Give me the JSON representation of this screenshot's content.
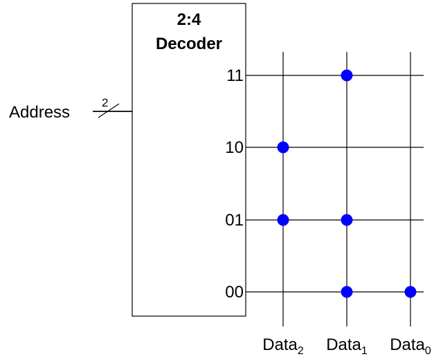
{
  "decoder": {
    "title_line1": "2:4",
    "title_line2": "Decoder"
  },
  "address": {
    "label": "Address",
    "bus_width": "2"
  },
  "wordlines": [
    "11",
    "10",
    "01",
    "00"
  ],
  "bitlines": [
    {
      "base": "Data",
      "sub": "2"
    },
    {
      "base": "Data",
      "sub": "1"
    },
    {
      "base": "Data",
      "sub": "0"
    }
  ],
  "stored_bits": {
    "11": [
      0,
      1,
      0
    ],
    "10": [
      1,
      0,
      0
    ],
    "01": [
      1,
      1,
      0
    ],
    "00": [
      0,
      1,
      1
    ]
  },
  "colors": {
    "line": "#000000",
    "dot": "#0000ff"
  }
}
